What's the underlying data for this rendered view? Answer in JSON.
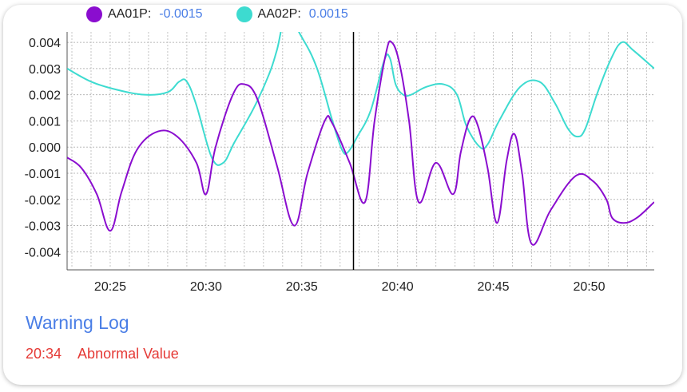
{
  "legend": {
    "items": [
      {
        "name": "AA01P:",
        "value": "-0.0015",
        "color": "#8a0dcf"
      },
      {
        "name": "AA02P:",
        "value": "0.0015",
        "color": "#3ddbd0"
      }
    ]
  },
  "warning_log": {
    "title": "Warning Log",
    "entries": [
      {
        "time": "20:34",
        "message": "Abnormal Value"
      }
    ]
  },
  "chart_data": {
    "type": "line",
    "xlim": [
      "20:22.75",
      "20:53.4"
    ],
    "ylim": [
      -0.0046,
      0.0044
    ],
    "yticks": [
      0.004,
      0.003,
      0.002,
      0.001,
      0.0,
      -0.001,
      -0.002,
      -0.003,
      -0.004
    ],
    "ytick_labels": [
      "0.004",
      "0.003",
      "0.002",
      "0.001",
      "0.000",
      "-0.001",
      "-0.002",
      "-0.003",
      "-0.004"
    ],
    "xticks": [
      "20:25",
      "20:30",
      "20:35",
      "20:40",
      "20:45",
      "20:50"
    ],
    "grid": true,
    "cursor_x": "20:37.7",
    "series": [
      {
        "name": "AA01P:",
        "color": "#8a0dcf",
        "points": [
          [
            "20:22.75",
            -0.0004
          ],
          [
            "20:23.5",
            -0.0008
          ],
          [
            "20:24.3",
            -0.0018
          ],
          [
            "20:25.0",
            -0.0032
          ],
          [
            "20:25.6",
            -0.0017
          ],
          [
            "20:26.4",
            -0.0001
          ],
          [
            "20:27.5",
            0.0006
          ],
          [
            "20:28.5",
            0.0004
          ],
          [
            "20:29.5",
            -0.0006
          ],
          [
            "20:30.0",
            -0.0018
          ],
          [
            "20:30.5",
            0.0
          ],
          [
            "20:31.4",
            0.002
          ],
          [
            "20:32.0",
            0.0024
          ],
          [
            "20:32.7",
            0.0018
          ],
          [
            "20:33.7",
            -0.0007
          ],
          [
            "20:34.6",
            -0.003
          ],
          [
            "20:35.3",
            -0.001
          ],
          [
            "20:36.2",
            0.001
          ],
          [
            "20:36.6",
            0.0009
          ],
          [
            "20:37.5",
            -0.0006
          ],
          [
            "20:38.3",
            -0.0021
          ],
          [
            "20:38.8",
            0.001
          ],
          [
            "20:39.4",
            0.0036
          ],
          [
            "20:39.7",
            0.004
          ],
          [
            "20:40.1",
            0.0032
          ],
          [
            "20:40.6",
            0.001
          ],
          [
            "20:41.1",
            -0.0021
          ],
          [
            "20:42.0",
            -0.0006
          ],
          [
            "20:42.9",
            -0.0018
          ],
          [
            "20:43.3",
            -0.0002
          ],
          [
            "20:43.8",
            0.0011
          ],
          [
            "20:44.2",
            0.0008
          ],
          [
            "20:44.7",
            -0.0008
          ],
          [
            "20:45.2",
            -0.0029
          ],
          [
            "20:45.7",
            -0.0005
          ],
          [
            "20:46.1",
            0.0005
          ],
          [
            "20:46.5",
            -0.001
          ],
          [
            "20:47.0",
            -0.0037
          ],
          [
            "20:48.0",
            -0.0024
          ],
          [
            "20:49.3",
            -0.0011
          ],
          [
            "20:50.2",
            -0.0013
          ],
          [
            "20:50.9",
            -0.002
          ],
          [
            "20:51.2",
            -0.0027
          ],
          [
            "20:51.8",
            -0.0029
          ],
          [
            "20:52.5",
            -0.0027
          ],
          [
            "20:53.4",
            -0.0021
          ]
        ]
      },
      {
        "name": "AA02P:",
        "color": "#3ddbd0",
        "points": [
          [
            "20:22.75",
            0.003
          ],
          [
            "20:24.0",
            0.0025
          ],
          [
            "20:25.3",
            0.0022
          ],
          [
            "20:26.8",
            0.002
          ],
          [
            "20:28.0",
            0.0021
          ],
          [
            "20:28.6",
            0.0025
          ],
          [
            "20:29.0",
            0.0025
          ],
          [
            "20:29.5",
            0.0016
          ],
          [
            "20:30.3",
            -0.0004
          ],
          [
            "20:30.9",
            -0.0006
          ],
          [
            "20:31.5",
            0.0002
          ],
          [
            "20:32.5",
            0.0015
          ],
          [
            "20:33.3",
            0.0028
          ],
          [
            "20:33.7",
            0.0037
          ],
          [
            "20:34.2",
            0.005
          ],
          [
            "20:35.0",
            0.0042
          ],
          [
            "20:35.8",
            0.003
          ],
          [
            "20:36.6",
            0.001
          ],
          [
            "20:37.1",
            -0.0001
          ],
          [
            "20:37.4",
            -0.0002
          ],
          [
            "20:37.9",
            0.0004
          ],
          [
            "20:38.6",
            0.0014
          ],
          [
            "20:39.3",
            0.0033
          ],
          [
            "20:39.6",
            0.0034
          ],
          [
            "20:39.9",
            0.0024
          ],
          [
            "20:40.3",
            0.002
          ],
          [
            "20:40.7",
            0.002
          ],
          [
            "20:41.5",
            0.0023
          ],
          [
            "20:42.4",
            0.0024
          ],
          [
            "20:43.1",
            0.002
          ],
          [
            "20:43.6",
            0.0008
          ],
          [
            "20:44.3",
            0.0
          ],
          [
            "20:44.7",
            0.0001
          ],
          [
            "20:45.3",
            0.001
          ],
          [
            "20:46.4",
            0.0023
          ],
          [
            "20:47.4",
            0.0025
          ],
          [
            "20:48.2",
            0.0017
          ],
          [
            "20:48.9",
            0.0007
          ],
          [
            "20:49.4",
            0.0004
          ],
          [
            "20:49.8",
            0.0007
          ],
          [
            "20:50.4",
            0.002
          ],
          [
            "20:51.1",
            0.0033
          ],
          [
            "20:51.7",
            0.004
          ],
          [
            "20:52.3",
            0.0037
          ],
          [
            "20:53.4",
            0.003
          ]
        ]
      }
    ]
  },
  "warning_color": "#e53935",
  "accent_color": "#4a7ee6"
}
